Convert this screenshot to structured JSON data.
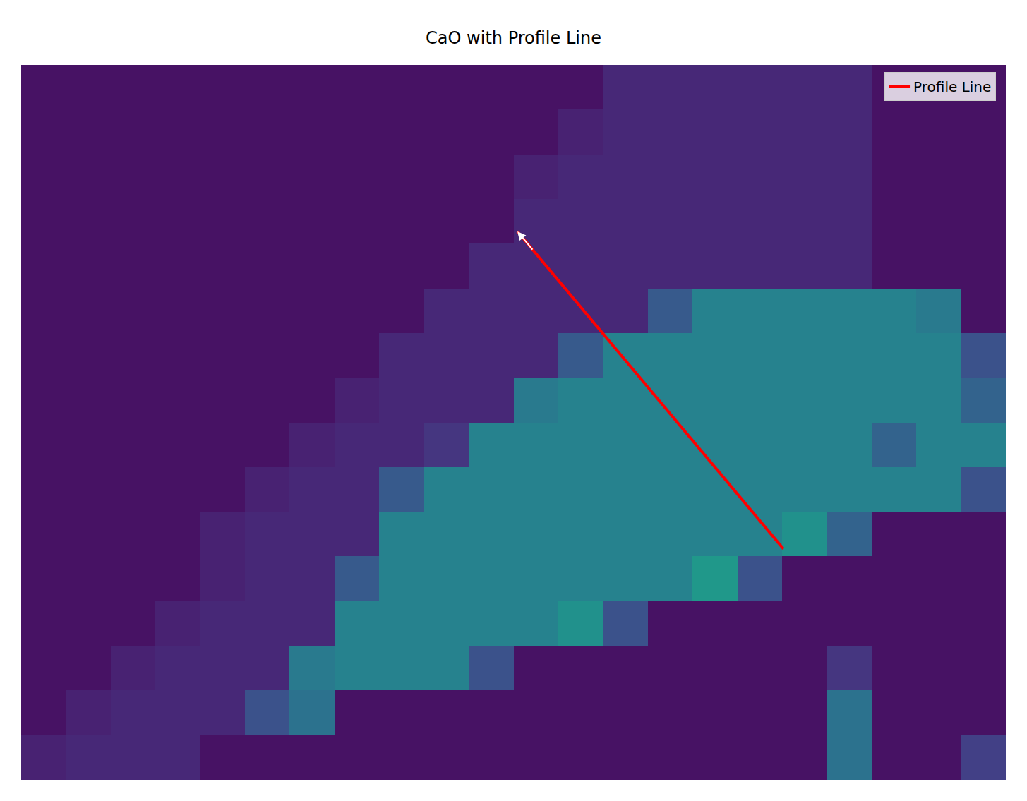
{
  "chart_data": {
    "type": "heatmap",
    "title": "CaO with Profile Line",
    "x": [
      6.25,
      18.75,
      31.25,
      43.75,
      56.25,
      68.75,
      81.25,
      93.75,
      106.25,
      118.75,
      131.25,
      143.75,
      156.25,
      168.75,
      181.25,
      193.75,
      206.25,
      218.75,
      231.25,
      243.75,
      256.25,
      268.75
    ],
    "y": [
      6.25,
      18.75,
      31.25,
      43.75,
      56.25,
      68.75,
      81.25,
      93.75,
      106.25,
      118.75,
      131.25,
      143.75,
      156.25,
      168.75,
      181.25,
      193.75
    ],
    "cells": [
      [
        1.5,
        1.5,
        1.5,
        1.5,
        1.5,
        1.5,
        1.5,
        1.5,
        1.5,
        1.5,
        1.5,
        1.5,
        1.5,
        3.5,
        3.5,
        3.5,
        3.5,
        3.5,
        3.5,
        1.5,
        1.5,
        1.5
      ],
      [
        1.5,
        1.5,
        1.5,
        1.5,
        1.5,
        1.5,
        1.5,
        1.5,
        1.5,
        1.5,
        1.5,
        1.5,
        3,
        3.5,
        3.5,
        3.5,
        3.5,
        3.5,
        3.5,
        1.5,
        1.5,
        1.5
      ],
      [
        1.5,
        1.5,
        1.5,
        1.5,
        1.5,
        1.5,
        1.5,
        1.5,
        1.5,
        1.5,
        1.5,
        3,
        3.5,
        3.5,
        3.5,
        3.5,
        3.5,
        3.5,
        3.5,
        1.5,
        1.5,
        1.5
      ],
      [
        1.5,
        1.5,
        1.5,
        1.5,
        1.5,
        1.5,
        1.5,
        1.5,
        1.5,
        1.5,
        1.5,
        3.5,
        3.5,
        3.5,
        3.5,
        3.5,
        3.5,
        3.5,
        3.5,
        1.5,
        1.5,
        1.5
      ],
      [
        1.5,
        1.5,
        1.5,
        1.5,
        1.5,
        1.5,
        1.5,
        1.5,
        1.5,
        1.5,
        3.5,
        3.5,
        3.5,
        3.5,
        3.5,
        3.5,
        3.5,
        3.5,
        3.5,
        1.5,
        1.5,
        1.5
      ],
      [
        1.5,
        1.5,
        1.5,
        1.5,
        1.5,
        1.5,
        1.5,
        1.5,
        1.5,
        3.5,
        3.5,
        3.5,
        3.5,
        3.5,
        9,
        14,
        14,
        14,
        14,
        14,
        13,
        1.5
      ],
      [
        1.5,
        1.5,
        1.5,
        1.5,
        1.5,
        1.5,
        1.5,
        1.5,
        3.5,
        3.5,
        3.5,
        3.5,
        9,
        14,
        14,
        14,
        14,
        14,
        14,
        14,
        14,
        8
      ],
      [
        1.5,
        1.5,
        1.5,
        1.5,
        1.5,
        1.5,
        1.5,
        3,
        3.5,
        3.5,
        3.5,
        13,
        14,
        14,
        14,
        14,
        14,
        14,
        14,
        14,
        14,
        10
      ],
      [
        1.5,
        1.5,
        1.5,
        1.5,
        1.5,
        1.5,
        3,
        3.5,
        3.5,
        5,
        14,
        14,
        14,
        14,
        14,
        14,
        14,
        14,
        14,
        10,
        14,
        14
      ],
      [
        1.5,
        1.5,
        1.5,
        1.5,
        1.5,
        3,
        3.5,
        3.5,
        9,
        14,
        14,
        14,
        14,
        14,
        14,
        14,
        14,
        14,
        14,
        14,
        14,
        8
      ],
      [
        1.5,
        1.5,
        1.5,
        1.5,
        3,
        3.5,
        3.5,
        3.5,
        14,
        14,
        14,
        14,
        14,
        14,
        14,
        14,
        14,
        16,
        10,
        1.5,
        1.5,
        1.5
      ],
      [
        1.5,
        1.5,
        1.5,
        1.5,
        3,
        3.5,
        3.5,
        9,
        14,
        14,
        14,
        14,
        14,
        14,
        14,
        17,
        8,
        1.5,
        1.5,
        1.5,
        1.5,
        1.5
      ],
      [
        1.5,
        1.5,
        1.5,
        3,
        3.5,
        3.5,
        3.5,
        14,
        14,
        14,
        14,
        14,
        16,
        8,
        1.5,
        1.5,
        1.5,
        1.5,
        1.5,
        1.5,
        1.5,
        1.5
      ],
      [
        1.5,
        1.5,
        3,
        3.5,
        3.5,
        3.5,
        13,
        14,
        14,
        14,
        8,
        1.5,
        1.5,
        1.5,
        1.5,
        1.5,
        1.5,
        1.5,
        5,
        1.5,
        1.5,
        1.5
      ],
      [
        1.5,
        3,
        3.5,
        3.5,
        3.5,
        8,
        12,
        1.5,
        1.5,
        1.5,
        1.5,
        1.5,
        1.5,
        1.5,
        1.5,
        1.5,
        1.5,
        1.5,
        12,
        1.5,
        1.5,
        1.5
      ],
      [
        3,
        3.5,
        3.5,
        3.5,
        1.5,
        1.5,
        1.5,
        1.5,
        1.5,
        1.5,
        1.5,
        1.5,
        1.5,
        1.5,
        1.5,
        1.5,
        1.5,
        1.5,
        12,
        1.5,
        1.5,
        6
      ]
    ],
    "zlim": [
      0,
      32
    ],
    "xlim": [
      0,
      275
    ],
    "ylim": [
      200,
      0
    ],
    "tick_labels": false,
    "grid": false,
    "legend": "upper right",
    "series": [
      {
        "name": "Profile Line",
        "type": "line",
        "color": "red",
        "marker": "arrow",
        "x": [
          212.9,
          138.6
        ],
        "y": [
          135.4,
          46.6
        ]
      }
    ]
  }
}
